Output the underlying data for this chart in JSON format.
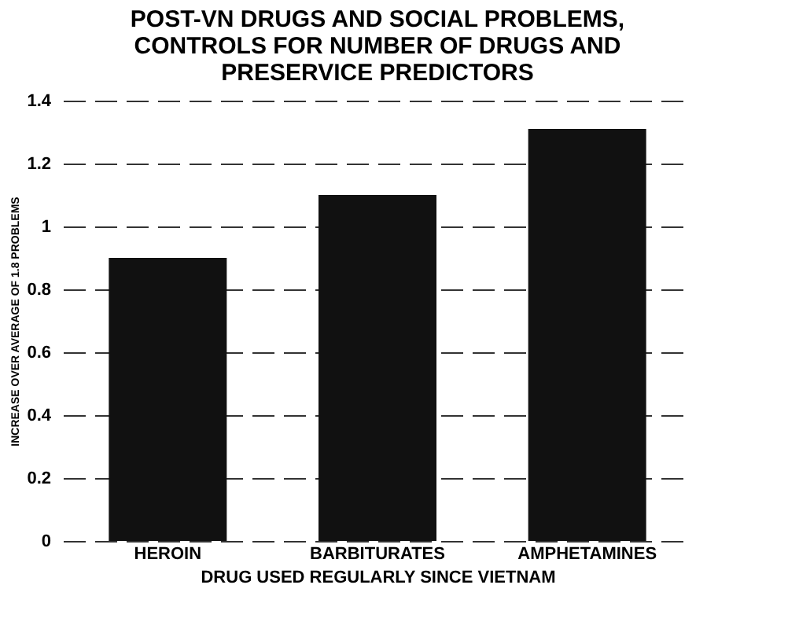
{
  "chart_data": {
    "type": "bar",
    "title": [
      "POST-VN DRUGS AND SOCIAL PROBLEMS,",
      "CONTROLS FOR NUMBER OF DRUGS AND",
      "PRESERVICE   PREDICTORS"
    ],
    "xlabel": "DRUG USED REGULARLY SINCE VIETNAM",
    "ylabel": "INCREASE OVER AVERAGE OF 1.8 PROBLEMS",
    "categories": [
      "HEROIN",
      "BARBITURATES",
      "AMPHETAMINES"
    ],
    "values": [
      0.9,
      1.1,
      1.31
    ],
    "color": "#111111",
    "ylim": [
      0,
      1.4
    ],
    "yticks": [
      0,
      0.2,
      0.4,
      0.6,
      0.8,
      1,
      1.2,
      1.4
    ],
    "grid": "y"
  }
}
